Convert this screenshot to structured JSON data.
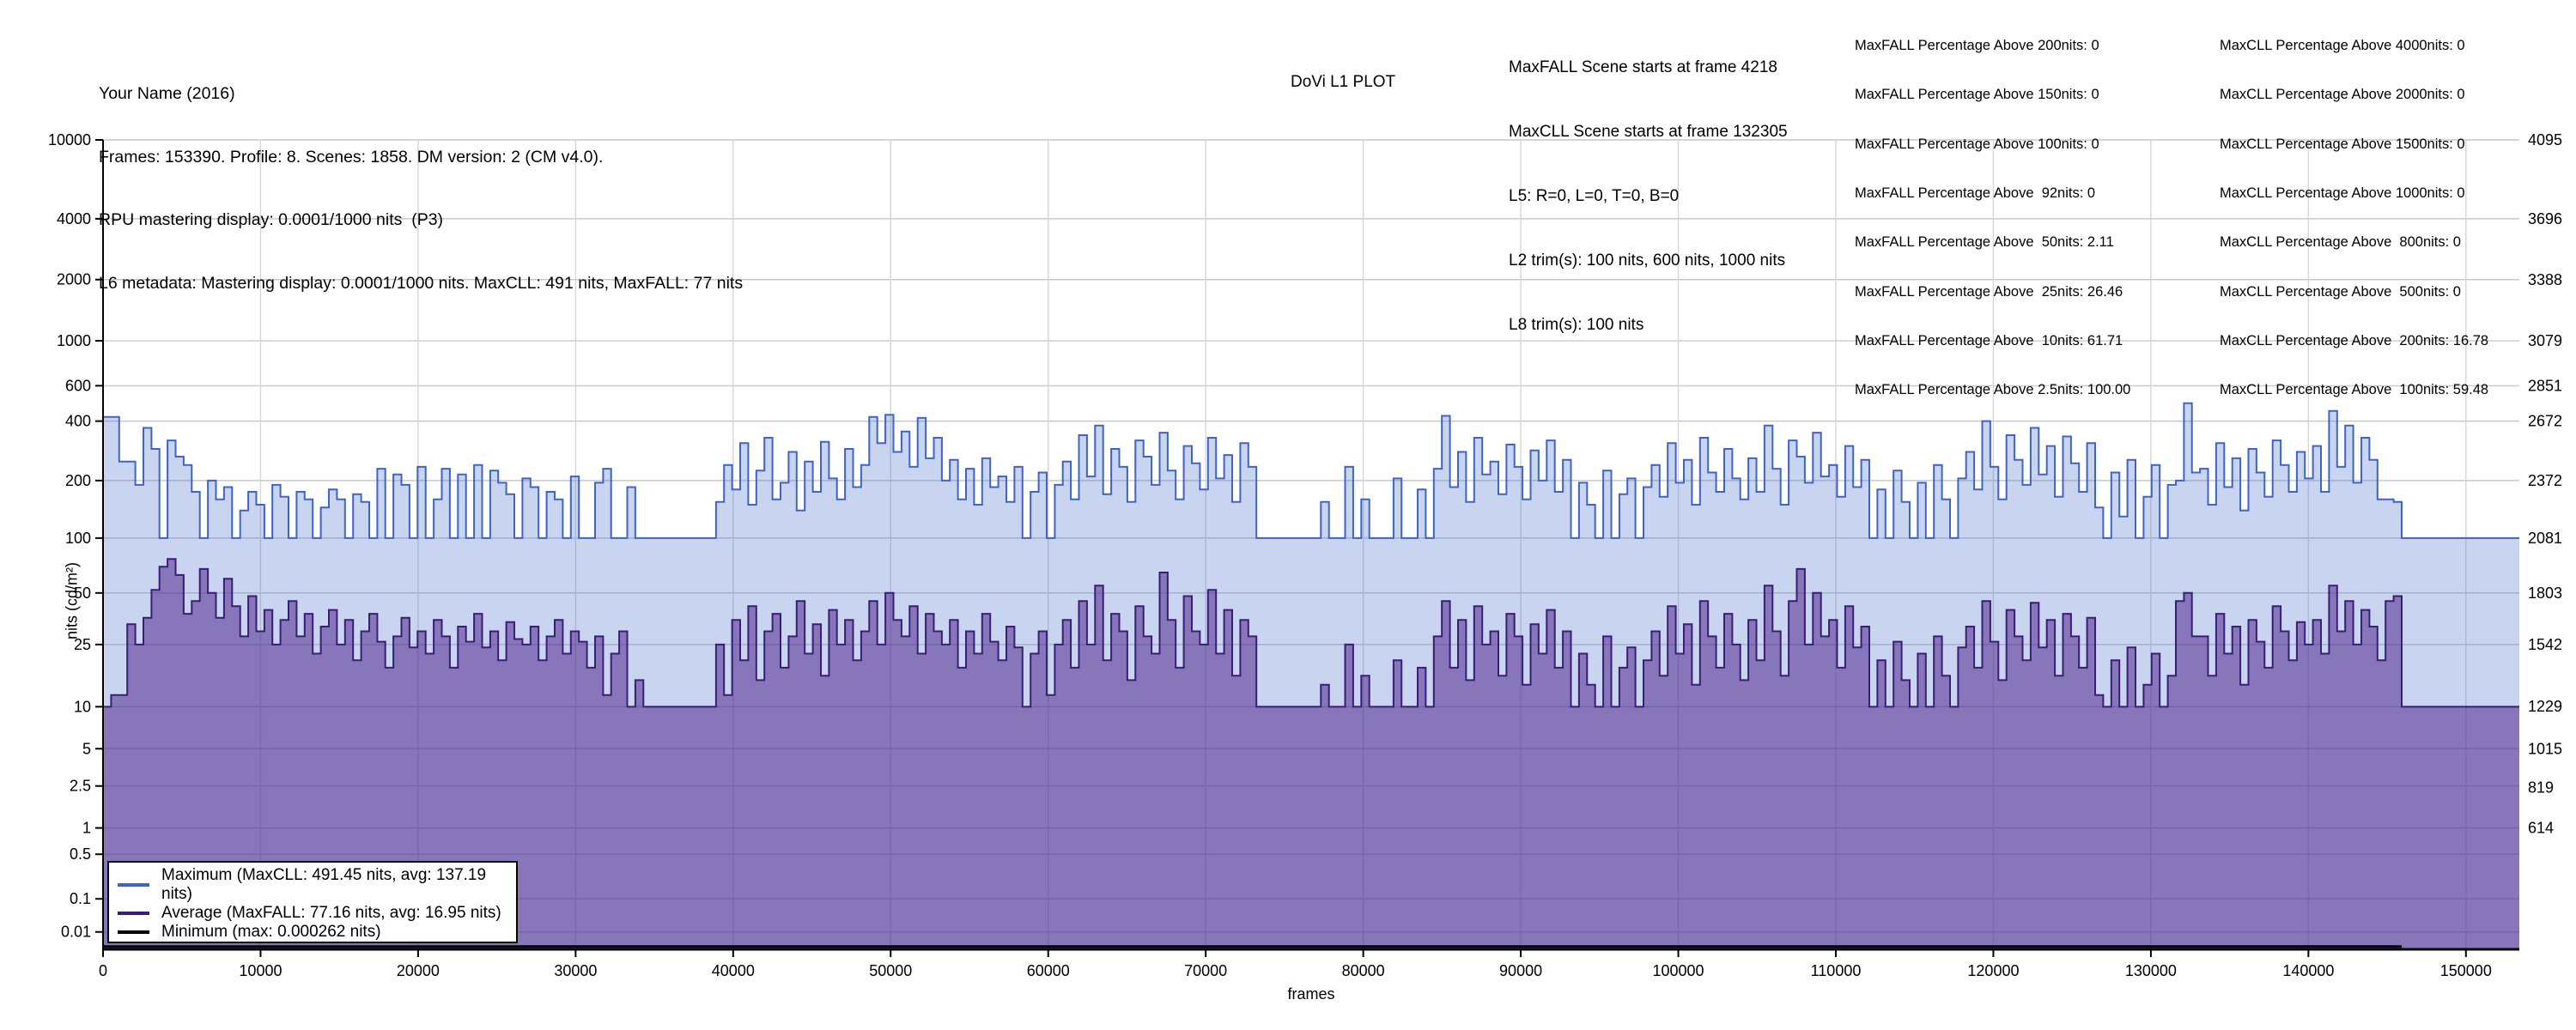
{
  "header": {
    "title_lines": [
      "Your Name (2016)",
      "Frames: 153390. Profile: 8. Scenes: 1858. DM version: 2 (CM v4.0).",
      "RPU mastering display: 0.0001/1000 nits  (P3)",
      "L6 metadata: Mastering display: 0.0001/1000 nits. MaxCLL: 491 nits, MaxFALL: 77 nits"
    ],
    "plot_title": "DoVi L1 PLOT",
    "scene_info_lines": [
      "MaxFALL Scene starts at frame 4218",
      "MaxCLL Scene starts at frame 132305",
      "L5: R=0, L=0, T=0, B=0",
      "L2 trim(s): 100 nits, 600 nits, 1000 nits",
      "L8 trim(s): 100 nits"
    ],
    "maxfall_pct_lines": [
      "MaxFALL Percentage Above 200nits: 0",
      "MaxFALL Percentage Above 150nits: 0",
      "MaxFALL Percentage Above 100nits: 0",
      "MaxFALL Percentage Above  92nits: 0",
      "MaxFALL Percentage Above  50nits: 2.11",
      "MaxFALL Percentage Above  25nits: 26.46",
      "MaxFALL Percentage Above  10nits: 61.71",
      "MaxFALL Percentage Above 2.5nits: 100.00"
    ],
    "maxcll_pct_lines": [
      "MaxCLL Percentage Above 4000nits: 0",
      "MaxCLL Percentage Above 2000nits: 0",
      "MaxCLL Percentage Above 1500nits: 0",
      "MaxCLL Percentage Above 1000nits: 0",
      "MaxCLL Percentage Above  800nits: 0",
      "MaxCLL Percentage Above  500nits: 0",
      "MaxCLL Percentage Above  200nits: 16.78",
      "MaxCLL Percentage Above  100nits: 59.48"
    ]
  },
  "chart_data": {
    "type": "area",
    "title": "DoVi L1 PLOT",
    "xlabel": "frames",
    "ylabel": "nits (cd/m²)",
    "x_range": [
      0,
      153390
    ],
    "x_ticks": [
      "0",
      "10000",
      "20000",
      "30000",
      "40000",
      "50000",
      "60000",
      "70000",
      "80000",
      "90000",
      "100000",
      "110000",
      "120000",
      "130000",
      "140000",
      "150000"
    ],
    "y_scale": "PQ 12-bit code, linear (SMPTE ST 2084)",
    "y_ticks_left_nits": [
      "10000",
      "4000",
      "2000",
      "1000",
      "600",
      "400",
      "200",
      "100",
      "50",
      "25",
      "10",
      "5",
      "2.5",
      "1",
      "0.5",
      "0.1",
      "0.01"
    ],
    "y_ticks_right_pq": [
      "4095",
      "3696",
      "3388",
      "3079",
      "2851",
      "2672",
      "2372",
      "2081",
      "1803",
      "1542",
      "1229",
      "1015",
      "819",
      "614"
    ],
    "grid": true,
    "legend_position": "lower-left",
    "sample_step_frames": 512,
    "series": [
      {
        "name": "Maximum",
        "legend": "Maximum (MaxCLL: 491.45 nits, avg: 137.19 nits)",
        "maxcll_nits": 491.45,
        "avg_nits": 137.19,
        "baseline_nits": 100,
        "line_color": "#3E64C8",
        "fill_rgba": "rgba(62,100,200,0.28)",
        "values_csv": "420,420,250,250,190,370,290,100,320,265,240,175,100,200,160,185,100,140,175,150,100,190,165,100,175,160,100,145,180,160,100,170,155,100,230,100,215,190,100,235,100,160,230,100,215,100,240,100,225,195,170,100,205,185,100,175,160,100,210,100,100,195,230,100,100,185,100,100,100,100,100,100,100,100,100,100,155,240,180,310,150,225,330,160,195,280,140,250,175,315,205,160,290,185,240,420,310,430,280,355,235,415,260,330,200,255,160,230,150,260,185,210,155,235,100,175,220,100,190,250,160,340,210,380,170,290,235,155,320,265,190,350,225,160,300,245,180,330,205,270,155,310,235,100,100,100,100,100,100,100,100,155,100,100,235,100,160,100,100,100,205,100,100,180,100,230,425,185,280,155,330,215,250,170,305,235,160,285,200,320,175,255,100,195,150,100,225,100,170,205,100,185,240,165,310,195,255,150,330,220,175,290,205,160,260,175,380,230,150,320,265,195,350,210,240,165,300,185,255,100,180,100,225,155,100,195,100,240,160,100,205,280,180,400,235,160,340,255,190,370,215,300,165,335,245,175,310,145,100,220,130,255,100,165,240,100,190,200,491.45,220,230,150,310,185,260,140,290,220,165,320,240,175,280,205,300,175,450,235,380,195,330,255,160,160,155,100,100,100,100,100,100,100,100,100,100,100,100,100,100,100"
      },
      {
        "name": "Average",
        "legend": "Average (MaxFALL: 77.16 nits, avg: 16.95 nits)",
        "maxfall_nits": 77.16,
        "avg_nits": 16.95,
        "baseline_nits": 10,
        "line_color": "#3A1D78",
        "fill_rgba": "rgba(80,40,140,0.55)",
        "values_csv": "10,12,12,33,25,36,52,70,77.16,63,38,45,68,50,36,60,42,28,48,30,40,25,35,45,28,38,22,32,40,25,35,20,30,38,26,18,28,36,24,30,22,35,28,18,32,26,38,24,30,20,34,27,25,32,20,28,35,22,30,26,18,28,12,22,30,10,15,10,10,10,10,10,10,10,10,10,25,12,35,20,42,15,30,38,18,28,45,22,33,16,40,25,35,20,30,45,25,50,35,28,42,22,38,30,25,35,18,30,22,38,26,20,32,24,10,22,30,12,25,35,18,45,25,55,20,38,30,15,42,28,22,65,35,18,48,30,25,52,22,40,16,35,28,10,10,10,10,10,10,10,10,14,10,10,25,10,16,10,10,10,20,10,10,18,10,28,45,18,35,15,42,25,30,16,38,28,14,33,22,40,18,30,10,22,14,10,28,10,18,24,10,20,30,16,42,22,33,14,45,28,18,38,25,15,35,20,55,30,16,45,68,25,50,28,35,18,42,24,32,10,20,10,26,15,10,22,10,28,16,10,24,32,18,45,26,15,40,28,20,44,24,35,16,38,28,18,36,12,10,20,10,24,10,14,22,10,16,45,50,28,28,16,38,22,32,14,35,26,18,42,30,20,34,25,35,22,55,30,45,25,40,32,20,45,48,10,10,10,10,10,10,10,10,10,10,10,10,10,10,10"
      },
      {
        "name": "Minimum",
        "legend": "Minimum (max: 0.000262 nits)",
        "max_nits": 0.000262,
        "line_color": "#000000",
        "approx_value_nits": 0.0002,
        "visible_until_frame": 145920
      }
    ],
    "annotations": {
      "maxfall_scene_frame": 4218,
      "maxcll_scene_frame": 132305
    }
  }
}
